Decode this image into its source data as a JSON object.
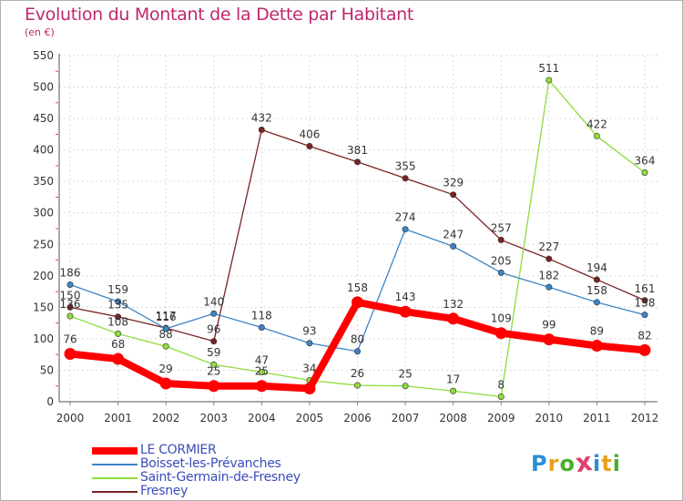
{
  "header": {
    "title": "Evolution du Montant de la Dette par Habitant",
    "unit": "(en €)"
  },
  "logo": {
    "letters": [
      "P",
      "r",
      "o",
      "x",
      "i",
      "t",
      "i"
    ],
    "colors": [
      "#2b8ed6",
      "#e8a21a",
      "#4cae2c",
      "#e04070",
      "#2b8ed6",
      "#e8a21a",
      "#4cae2c"
    ]
  },
  "chart_data": {
    "type": "line",
    "title": "Evolution du Montant de la Dette par Habitant",
    "subtitle": "(en €)",
    "xlabel": "",
    "ylabel": "",
    "x": [
      "2000",
      "2001",
      "2002",
      "2003",
      "2004",
      "2005",
      "2006",
      "2007",
      "2008",
      "2009",
      "2010",
      "2011",
      "2012"
    ],
    "ylim": [
      0,
      550
    ],
    "yticks": [
      0,
      50,
      100,
      150,
      200,
      250,
      300,
      350,
      400,
      450,
      500,
      550
    ],
    "grid": true,
    "legend_position": "bottom-left",
    "series": [
      {
        "name": "LE CORMIER",
        "color": "#ff0000",
        "values": [
          76,
          68,
          29,
          25,
          25,
          21,
          158,
          143,
          132,
          109,
          99,
          89,
          82
        ],
        "labels": [
          "76",
          "68",
          "29",
          "25",
          "25",
          "",
          "158",
          "143",
          "132",
          "109",
          "99",
          "89",
          "82"
        ]
      },
      {
        "name": "Boisset-les-Prévanches",
        "color": "#3d85c6",
        "values": [
          186,
          159,
          116,
          140,
          118,
          93,
          80,
          274,
          247,
          205,
          182,
          158,
          138
        ],
        "labels": [
          "186",
          "159",
          "116",
          "140",
          "118",
          "93",
          "80",
          "274",
          "247",
          "205",
          "182",
          "158",
          "138"
        ]
      },
      {
        "name": "Saint-Germain-de-Fresney",
        "color": "#8fdc3c",
        "values": [
          136,
          108,
          88,
          59,
          47,
          34,
          26,
          25,
          17,
          8,
          511,
          422,
          364
        ],
        "labels": [
          "136",
          "108",
          "88",
          "59",
          "47",
          "34",
          "26",
          "25",
          "17",
          "8",
          "511",
          "422",
          "364"
        ]
      },
      {
        "name": "Fresney",
        "color": "#7a2323",
        "values": [
          150,
          135,
          117,
          96,
          432,
          406,
          381,
          355,
          329,
          257,
          227,
          194,
          161
        ],
        "labels": [
          "150",
          "135",
          "117",
          "96",
          "432",
          "406",
          "381",
          "355",
          "329",
          "257",
          "227",
          "194",
          "161"
        ]
      }
    ]
  }
}
